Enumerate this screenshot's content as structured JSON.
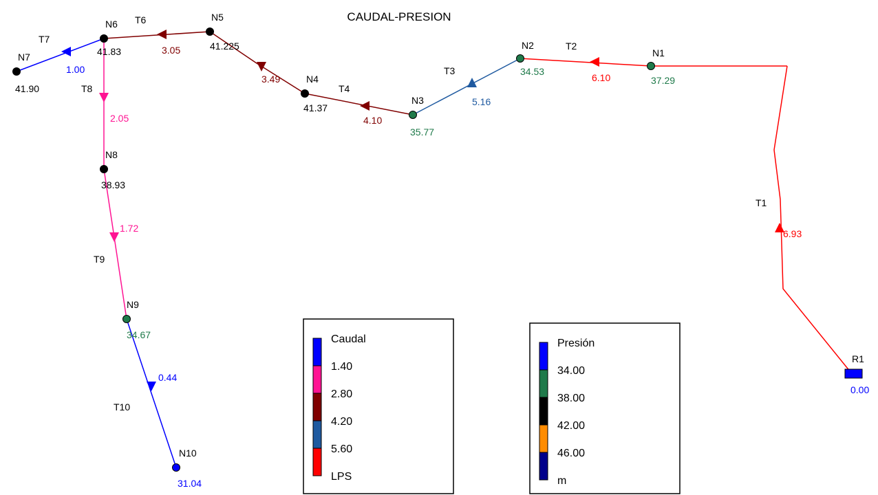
{
  "title": "CAUDAL-PRESION",
  "colors": {
    "flow_blue": "#0000ff",
    "flow_pink": "#ff1493",
    "flow_maroon": "#800000",
    "flow_steel": "#1f5aa0",
    "flow_red": "#ff0000",
    "pres_blue": "#0000ff",
    "pres_green": "#1f7a4a",
    "pres_black": "#000000",
    "pres_orange": "#ff8c00",
    "pres_navy": "#00008b"
  },
  "nodes": [
    {
      "id": "N1",
      "value": "37.29",
      "color": "pres_green"
    },
    {
      "id": "N2",
      "value": "34.53",
      "color": "pres_green"
    },
    {
      "id": "N3",
      "value": "35.77",
      "color": "pres_green"
    },
    {
      "id": "N4",
      "value": "41.37",
      "color": "pres_black"
    },
    {
      "id": "N5",
      "value": "41.225",
      "color": "pres_black"
    },
    {
      "id": "N6",
      "value": "41.83",
      "color": "pres_black"
    },
    {
      "id": "N7",
      "value": "41.90",
      "color": "pres_black"
    },
    {
      "id": "N8",
      "value": "38.93",
      "color": "pres_black"
    },
    {
      "id": "N9",
      "value": "34.67",
      "color": "pres_green"
    },
    {
      "id": "N10",
      "value": "31.04",
      "color": "pres_blue"
    }
  ],
  "reservoir": {
    "id": "R1",
    "value": "0.00"
  },
  "pipes": [
    {
      "id": "T1",
      "flow": "6.93",
      "color": "flow_red"
    },
    {
      "id": "T2",
      "flow": "6.10",
      "color": "flow_red"
    },
    {
      "id": "T3",
      "flow": "5.16",
      "color": "flow_steel"
    },
    {
      "id": "T4",
      "flow": "4.10",
      "color": "flow_maroon"
    },
    {
      "id": "T5",
      "flow": "3.49",
      "color": "flow_maroon"
    },
    {
      "id": "T6",
      "flow": "3.05",
      "color": "flow_maroon"
    },
    {
      "id": "T7",
      "flow": "1.00",
      "color": "flow_blue"
    },
    {
      "id": "T8",
      "flow": "2.05",
      "color": "flow_pink"
    },
    {
      "id": "T9",
      "flow": "1.72",
      "color": "flow_pink"
    },
    {
      "id": "T10",
      "flow": "0.44",
      "color": "flow_blue"
    }
  ],
  "legend_flow": {
    "title": "Caudal",
    "labels": [
      "1.40",
      "2.80",
      "4.20",
      "5.60",
      "LPS"
    ],
    "colors": [
      "flow_blue",
      "flow_pink",
      "flow_maroon",
      "flow_steel",
      "flow_red"
    ]
  },
  "legend_pressure": {
    "title": "Presión",
    "labels": [
      "34.00",
      "38.00",
      "42.00",
      "46.00",
      "m"
    ],
    "colors": [
      "pres_blue",
      "pres_green",
      "pres_black",
      "pres_orange",
      "pres_navy"
    ]
  }
}
